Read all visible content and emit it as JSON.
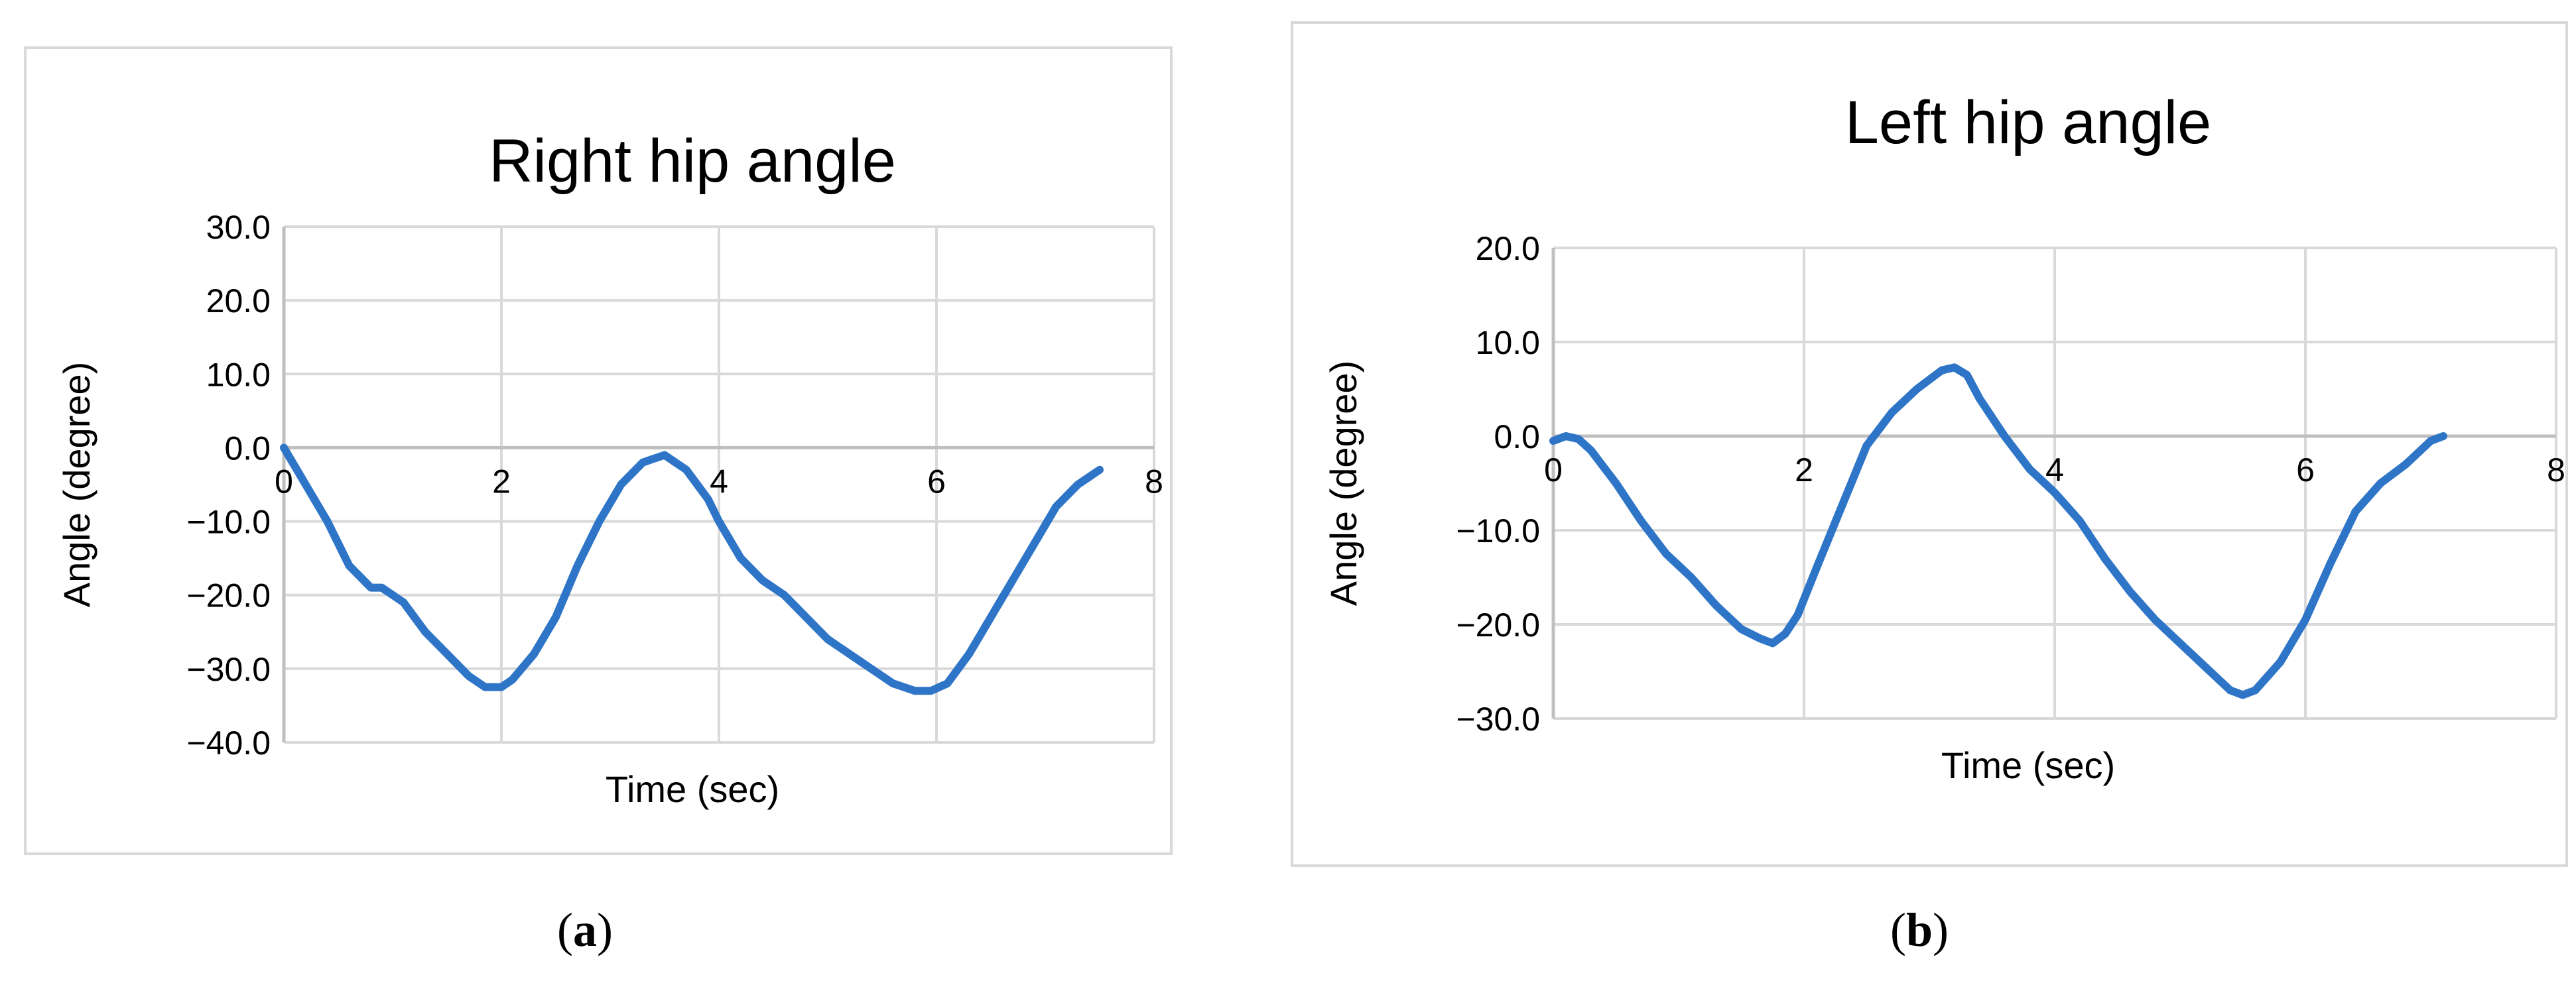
{
  "chart_data": [
    {
      "type": "line",
      "title": "Right hip angle",
      "xlabel": "Time (sec)",
      "ylabel": "Angle (degree)",
      "xlim": [
        0,
        8
      ],
      "ylim": [
        -40,
        30
      ],
      "xticks": [
        0,
        2,
        4,
        6,
        8
      ],
      "yticks": [
        -40,
        -30,
        -20,
        -10,
        0,
        10,
        20,
        30
      ],
      "xtick_labels": [
        "0",
        "2",
        "4",
        "6",
        "8"
      ],
      "ytick_labels": [
        "−40.0",
        "−30.0",
        "−20.0",
        "−10.0",
        "0.0",
        "10.0",
        "20.0",
        "30.0"
      ],
      "grid": true,
      "color": "#2e75c7",
      "series": [
        {
          "x": [
            0,
            0.2,
            0.4,
            0.6,
            0.8,
            0.9,
            1.0,
            1.1,
            1.3,
            1.5,
            1.7,
            1.85,
            2.0,
            2.1,
            2.3,
            2.5,
            2.7,
            2.9,
            3.1,
            3.3,
            3.5,
            3.7,
            3.8,
            3.9,
            4.0,
            4.2,
            4.4,
            4.6,
            4.8,
            5.0,
            5.2,
            5.4,
            5.6,
            5.8,
            5.95,
            6.1,
            6.3,
            6.5,
            6.7,
            6.9,
            7.1,
            7.3,
            7.5
          ],
          "y": [
            0,
            -5,
            -10,
            -16,
            -19,
            -19,
            -20,
            -21,
            -25,
            -28,
            -31,
            -32.5,
            -32.5,
            -31.5,
            -28,
            -23,
            -16,
            -10,
            -5,
            -2,
            -1,
            -3,
            -5,
            -7,
            -10,
            -15,
            -18,
            -20,
            -23,
            -26,
            -28,
            -30,
            -32,
            -33,
            -33,
            -32,
            -28,
            -23,
            -18,
            -13,
            -8,
            -5,
            -3
          ]
        }
      ]
    },
    {
      "type": "line",
      "title": "Left hip angle",
      "xlabel": "Time (sec)",
      "ylabel": "Angle (degree)",
      "xlim": [
        0,
        8
      ],
      "ylim": [
        -30,
        20
      ],
      "xticks": [
        0,
        2,
        4,
        6,
        8
      ],
      "yticks": [
        -30,
        -20,
        -10,
        0,
        10,
        20
      ],
      "xtick_labels": [
        "0",
        "2",
        "4",
        "6",
        "8"
      ],
      "ytick_labels": [
        "−30.0",
        "−20.0",
        "−10.0",
        "0.0",
        "10.0",
        "20.0"
      ],
      "grid": true,
      "color": "#2e75c7",
      "series": [
        {
          "x": [
            0,
            0.1,
            0.2,
            0.3,
            0.5,
            0.7,
            0.9,
            1.1,
            1.3,
            1.5,
            1.65,
            1.75,
            1.85,
            1.95,
            2.1,
            2.3,
            2.5,
            2.7,
            2.9,
            3.1,
            3.2,
            3.3,
            3.4,
            3.6,
            3.8,
            4.0,
            4.2,
            4.4,
            4.6,
            4.8,
            5.0,
            5.2,
            5.4,
            5.5,
            5.6,
            5.8,
            6.0,
            6.2,
            6.4,
            6.6,
            6.8,
            7.0,
            7.1
          ],
          "y": [
            -0.5,
            0,
            -0.3,
            -1.5,
            -5,
            -9,
            -12.5,
            -15,
            -18,
            -20.5,
            -21.5,
            -22,
            -21,
            -19,
            -14,
            -7.5,
            -1,
            2.5,
            5,
            7,
            7.3,
            6.5,
            4,
            0,
            -3.5,
            -6,
            -9,
            -13,
            -16.5,
            -19.5,
            -22,
            -24.5,
            -27,
            -27.5,
            -27,
            -24,
            -19.5,
            -13.5,
            -8,
            -5,
            -3,
            -0.5,
            0
          ]
        }
      ]
    }
  ],
  "captions": {
    "a_open": "(",
    "a_letter": "a",
    "a_close": ")",
    "b_open": "(",
    "b_letter": "b",
    "b_close": ")"
  }
}
